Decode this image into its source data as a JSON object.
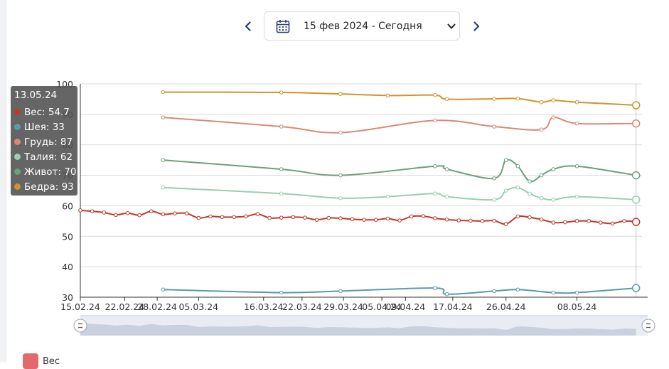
{
  "header": {
    "date_range": "15 фев 2024 - Сегодня",
    "prev_icon": "chevron-left-icon",
    "next_icon": "chevron-right-icon",
    "calendar_icon": "calendar-icon",
    "dropdown_icon": "chevron-down-icon"
  },
  "tooltip": {
    "date": "13.05.24",
    "rows": [
      {
        "text": "Вес: 54.7",
        "color": "#c0392b"
      },
      {
        "text": "Шея: 33",
        "color": "#5b9aa9"
      },
      {
        "text": "Грудь: 87",
        "color": "#d98a73"
      },
      {
        "text": "Талия: 62",
        "color": "#97cfb2"
      },
      {
        "text": "Живот: 70",
        "color": "#6f9e7b"
      },
      {
        "text": "Бедра: 93",
        "color": "#d4922a"
      }
    ]
  },
  "legend": {
    "first_label": "Вес",
    "first_color": "#e26a6a"
  },
  "chart_data": {
    "type": "line",
    "title": "",
    "xlabel": "",
    "ylabel": "",
    "ylim": [
      30,
      100
    ],
    "y_ticks": [
      "100",
      "90",
      "80",
      "70",
      "60",
      "50",
      "40",
      "30"
    ],
    "x_ticks": [
      "15.02.24",
      "22.02.24",
      "28.02.24",
      "05.03.24",
      "16.03.24",
      "22.03.24",
      "29.03.24",
      "05.04.24",
      "09.04.24",
      "17.04.24",
      "26.04.24",
      "08.05.24"
    ],
    "x_tick_pos": [
      0,
      7.5,
      13,
      20,
      31,
      37.5,
      44.5,
      51,
      55,
      63,
      72,
      84
    ],
    "x_span": [
      0,
      95
    ],
    "hover_x": 94,
    "series": [
      {
        "name": "Бедра",
        "color": "#d4922a",
        "x": [
          14,
          34,
          44,
          52,
          60,
          62,
          70,
          74,
          78,
          80,
          84,
          94
        ],
        "values": [
          97.3,
          97.2,
          96.7,
          96.2,
          96.3,
          95,
          95.1,
          95.2,
          94,
          94.6,
          94,
          93
        ]
      },
      {
        "name": "Грудь",
        "color": "#d98a73",
        "x": [
          14,
          34,
          44,
          60,
          70,
          78,
          80,
          84,
          94
        ],
        "values": [
          89,
          86,
          84,
          88,
          86,
          85,
          89,
          87,
          87
        ]
      },
      {
        "name": "Живот",
        "color": "#6f9e7b",
        "x": [
          14,
          34,
          44,
          60,
          62,
          70,
          72,
          74,
          76,
          78,
          80,
          84,
          94
        ],
        "values": [
          75,
          72,
          70,
          73,
          72,
          69,
          75,
          73,
          68,
          70,
          72,
          73,
          70
        ]
      },
      {
        "name": "Талия",
        "color": "#97cfb2",
        "x": [
          14,
          34,
          44,
          52,
          60,
          62,
          70,
          72,
          74,
          76,
          78,
          80,
          84,
          94
        ],
        "values": [
          66,
          64,
          62.5,
          63,
          64,
          63,
          62,
          65,
          66,
          64,
          62.5,
          62,
          63,
          62
        ]
      },
      {
        "name": "Вес",
        "color": "#c0392b",
        "x": [
          0,
          2,
          4,
          6,
          8,
          10,
          12,
          14,
          16,
          18,
          20,
          22,
          24,
          26,
          28,
          30,
          32,
          34,
          36,
          38,
          40,
          42,
          44,
          46,
          48,
          50,
          52,
          54,
          56,
          58,
          60,
          62,
          64,
          66,
          68,
          70,
          72,
          74,
          76,
          78,
          80,
          82,
          84,
          86,
          88,
          90,
          92,
          94
        ],
        "values": [
          58.5,
          58.2,
          57.8,
          57,
          57.6,
          56.9,
          58.2,
          57.2,
          57.5,
          57.5,
          56,
          56.5,
          56.3,
          56.3,
          56.5,
          57.3,
          56,
          56.1,
          56.3,
          56.1,
          55.4,
          56,
          55.9,
          55.6,
          55.4,
          55.4,
          55.8,
          55.2,
          56.5,
          56.6,
          55.9,
          55.5,
          55.2,
          55.1,
          55,
          55.1,
          54,
          56.5,
          56.2,
          55.5,
          54.5,
          54.6,
          55,
          55,
          54.5,
          54.2,
          55,
          54.7
        ]
      },
      {
        "name": "Шея",
        "color": "#5b9aa9",
        "x": [
          14,
          34,
          44,
          60,
          62,
          70,
          74,
          80,
          84,
          94
        ],
        "values": [
          32.5,
          31.5,
          32,
          33,
          31,
          32,
          32.5,
          31.5,
          31.5,
          33
        ]
      }
    ]
  }
}
